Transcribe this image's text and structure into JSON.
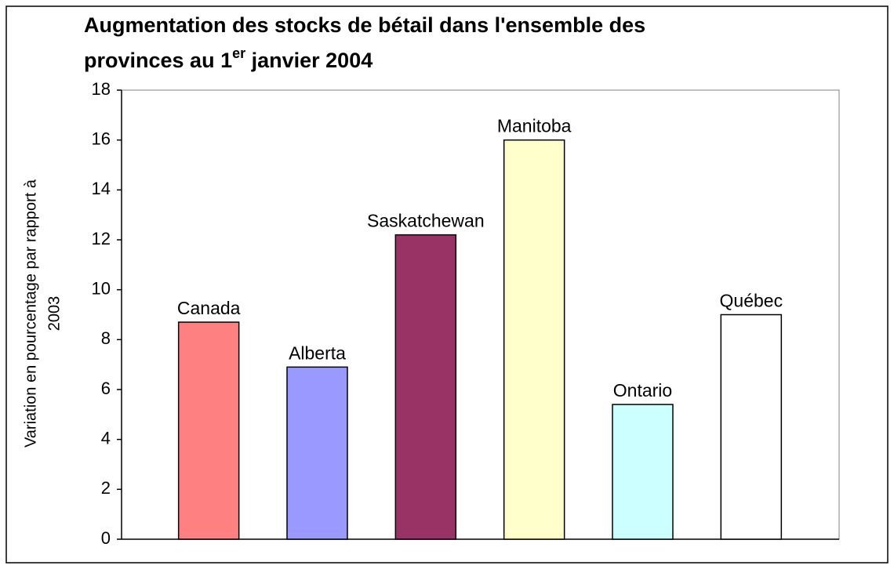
{
  "chart_data": {
    "type": "bar",
    "title": {
      "line1": "Augmentation des stocks de bétail dans l'ensemble des",
      "line2": "provinces au 1",
      "superscript": "er",
      "line2_end": " janvier 2004"
    },
    "y_label": [
      "Variation en pourcentage par rapport à",
      "2003"
    ],
    "categories": [
      "Canada",
      "Alberta",
      "Saskatchewan",
      "Manitoba",
      "Ontario",
      "Québec"
    ],
    "values": [
      8.7,
      6.9,
      12.2,
      16,
      5.4,
      9
    ],
    "colors": [
      "#ff8080",
      "#9999ff",
      "#993366",
      "#ffffcc",
      "#ccffff",
      "#ffffff"
    ],
    "ylim": [
      0,
      18
    ],
    "yticks": [
      0,
      2,
      4,
      6,
      8,
      10,
      12,
      14,
      16,
      18
    ],
    "grid": false
  }
}
